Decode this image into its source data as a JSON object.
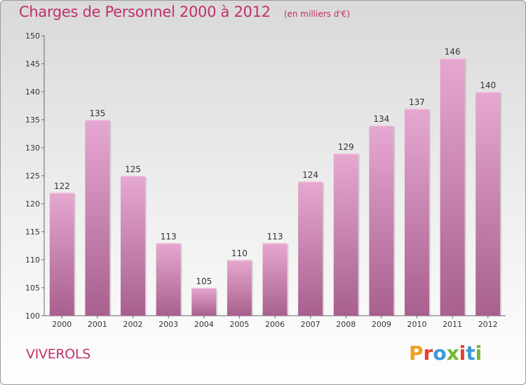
{
  "header": {
    "title": "Charges de Personnel 2000 à 2012",
    "subtitle": "(en milliers d'€)"
  },
  "footer": {
    "commune": "VIVEROLS",
    "logo_text": "Proxiti"
  },
  "colors": {
    "title": "#c0306a",
    "bar_top": "#e6a8d0",
    "bar_bottom": "#a8608d",
    "logo": [
      "#f0a020",
      "#e8402a",
      "#3a9ad8",
      "#70b830",
      "#e8402a",
      "#3a9ad8",
      "#70b830"
    ]
  },
  "chart_data": {
    "type": "bar",
    "title": "Charges de Personnel 2000 à 2012",
    "subtitle": "(en milliers d'€)",
    "categories": [
      "2000",
      "2001",
      "2002",
      "2003",
      "2004",
      "2005",
      "2006",
      "2007",
      "2008",
      "2009",
      "2010",
      "2011",
      "2012"
    ],
    "values": [
      122,
      135,
      125,
      113,
      105,
      110,
      113,
      124,
      129,
      134,
      137,
      146,
      140
    ],
    "ylim": [
      100,
      150
    ],
    "yticks": [
      100,
      105,
      110,
      115,
      120,
      125,
      130,
      135,
      140,
      145,
      150
    ],
    "grid": false,
    "xlabel": "",
    "ylabel": ""
  }
}
